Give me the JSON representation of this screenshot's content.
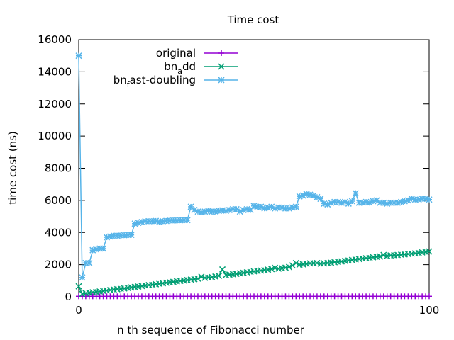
{
  "chart_data": {
    "type": "line",
    "title": "Time cost",
    "xlabel": "n th sequence of Fibonacci number",
    "ylabel": "time cost (ns)",
    "xlim": [
      0,
      100
    ],
    "ylim": [
      0,
      16000
    ],
    "xticks": [
      0,
      100
    ],
    "xtick_labels": [
      "0",
      "100"
    ],
    "yticks": [
      0,
      2000,
      4000,
      6000,
      8000,
      10000,
      12000,
      14000,
      16000
    ],
    "ytick_labels": [
      "0",
      "2000",
      "4000",
      "6000",
      "8000",
      "10000",
      "12000",
      "14000",
      "16000"
    ],
    "grid": false,
    "legend_position": "top-left",
    "legend": [
      {
        "base": "original",
        "sub": "",
        "rest": ""
      },
      {
        "base": "bn",
        "sub": "a",
        "rest": "dd"
      },
      {
        "base": "bn",
        "sub": "f",
        "rest": "ast-doubling"
      }
    ],
    "series": [
      {
        "name": "original",
        "color": "#9400d3",
        "marker": "plus",
        "x": [
          0,
          1,
          2,
          3,
          4,
          5,
          6,
          7,
          8,
          9,
          10,
          11,
          12,
          13,
          14,
          15,
          16,
          17,
          18,
          19,
          20,
          21,
          22,
          23,
          24,
          25,
          26,
          27,
          28,
          29,
          30,
          31,
          32,
          33,
          34,
          35,
          36,
          37,
          38,
          39,
          40,
          41,
          42,
          43,
          44,
          45,
          46,
          47,
          48,
          49,
          50,
          51,
          52,
          53,
          54,
          55,
          56,
          57,
          58,
          59,
          60,
          61,
          62,
          63,
          64,
          65,
          66,
          67,
          68,
          69,
          70,
          71,
          72,
          73,
          74,
          75,
          76,
          77,
          78,
          79,
          80,
          81,
          82,
          83,
          84,
          85,
          86,
          87,
          88,
          89,
          90,
          91,
          92,
          93,
          94,
          95,
          96,
          97,
          98,
          99,
          100
        ],
        "y": [
          30,
          30,
          30,
          30,
          30,
          30,
          30,
          30,
          30,
          30,
          30,
          30,
          30,
          30,
          30,
          30,
          30,
          30,
          30,
          30,
          30,
          30,
          30,
          30,
          30,
          30,
          30,
          30,
          30,
          30,
          30,
          30,
          30,
          30,
          30,
          30,
          30,
          30,
          30,
          30,
          30,
          30,
          30,
          30,
          30,
          30,
          30,
          30,
          30,
          30,
          30,
          30,
          30,
          30,
          30,
          30,
          30,
          30,
          30,
          30,
          30,
          30,
          30,
          30,
          30,
          30,
          30,
          30,
          30,
          30,
          30,
          30,
          30,
          30,
          30,
          30,
          30,
          30,
          30,
          30,
          30,
          30,
          30,
          30,
          30,
          30,
          30,
          30,
          30,
          30,
          30,
          30,
          30,
          30,
          30,
          30,
          30,
          30,
          30,
          30,
          30
        ]
      },
      {
        "name": "bn_add",
        "color": "#009e73",
        "marker": "x",
        "x": [
          0,
          1,
          2,
          3,
          4,
          5,
          6,
          7,
          8,
          9,
          10,
          11,
          12,
          13,
          14,
          15,
          16,
          17,
          18,
          19,
          20,
          21,
          22,
          23,
          24,
          25,
          26,
          27,
          28,
          29,
          30,
          31,
          32,
          33,
          34,
          35,
          36,
          37,
          38,
          39,
          40,
          41,
          42,
          43,
          44,
          45,
          46,
          47,
          48,
          49,
          50,
          51,
          52,
          53,
          54,
          55,
          56,
          57,
          58,
          59,
          60,
          61,
          62,
          63,
          64,
          65,
          66,
          67,
          68,
          69,
          70,
          71,
          72,
          73,
          74,
          75,
          76,
          77,
          78,
          79,
          80,
          81,
          82,
          83,
          84,
          85,
          86,
          87,
          88,
          89,
          90,
          91,
          92,
          93,
          94,
          95,
          96,
          97,
          98,
          99,
          100
        ],
        "y": [
          650,
          180,
          220,
          250,
          280,
          300,
          330,
          360,
          390,
          420,
          450,
          470,
          500,
          520,
          550,
          580,
          610,
          640,
          670,
          700,
          730,
          750,
          780,
          810,
          840,
          870,
          900,
          930,
          960,
          990,
          1010,
          1040,
          1070,
          1100,
          1130,
          1250,
          1180,
          1200,
          1220,
          1260,
          1300,
          1700,
          1350,
          1380,
          1400,
          1430,
          1460,
          1490,
          1520,
          1550,
          1580,
          1600,
          1630,
          1660,
          1690,
          1720,
          1800,
          1750,
          1780,
          1810,
          1850,
          1950,
          2100,
          2000,
          2020,
          2050,
          2080,
          2090,
          2100,
          2060,
          2080,
          2100,
          2120,
          2150,
          2180,
          2200,
          2230,
          2260,
          2290,
          2320,
          2350,
          2380,
          2400,
          2430,
          2460,
          2490,
          2510,
          2600,
          2540,
          2570,
          2580,
          2600,
          2620,
          2640,
          2660,
          2680,
          2700,
          2730,
          2760,
          2790,
          2820
        ]
      },
      {
        "name": "bn_fast-doubling",
        "color": "#56b4e9",
        "marker": "star",
        "x": [
          0,
          1,
          2,
          3,
          4,
          5,
          6,
          7,
          8,
          9,
          10,
          11,
          12,
          13,
          14,
          15,
          16,
          17,
          18,
          19,
          20,
          21,
          22,
          23,
          24,
          25,
          26,
          27,
          28,
          29,
          30,
          31,
          32,
          33,
          34,
          35,
          36,
          37,
          38,
          39,
          40,
          41,
          42,
          43,
          44,
          45,
          46,
          47,
          48,
          49,
          50,
          51,
          52,
          53,
          54,
          55,
          56,
          57,
          58,
          59,
          60,
          61,
          62,
          63,
          64,
          65,
          66,
          67,
          68,
          69,
          70,
          71,
          72,
          73,
          74,
          75,
          76,
          77,
          78,
          79,
          80,
          81,
          82,
          83,
          84,
          85,
          86,
          87,
          88,
          89,
          90,
          91,
          92,
          93,
          94,
          95,
          96,
          97,
          98,
          99,
          100
        ],
        "y": [
          15000,
          1200,
          2100,
          2100,
          2900,
          2950,
          3000,
          3000,
          3700,
          3750,
          3800,
          3800,
          3820,
          3830,
          3850,
          3850,
          4550,
          4600,
          4650,
          4700,
          4700,
          4700,
          4720,
          4650,
          4700,
          4720,
          4750,
          4750,
          4750,
          4760,
          4780,
          4770,
          5600,
          5400,
          5300,
          5250,
          5300,
          5350,
          5300,
          5300,
          5350,
          5380,
          5350,
          5400,
          5450,
          5450,
          5300,
          5400,
          5450,
          5400,
          5650,
          5600,
          5600,
          5500,
          5550,
          5600,
          5500,
          5550,
          5550,
          5500,
          5500,
          5560,
          5600,
          6250,
          6300,
          6400,
          6350,
          6300,
          6200,
          6100,
          5800,
          5750,
          5850,
          5900,
          5900,
          5850,
          5900,
          5800,
          5950,
          6450,
          5850,
          5850,
          5900,
          5850,
          5950,
          6000,
          5850,
          5850,
          5800,
          5850,
          5850,
          5850,
          5900,
          5950,
          6000,
          6100,
          6050,
          6050,
          6100,
          6100,
          6050
        ]
      }
    ]
  }
}
